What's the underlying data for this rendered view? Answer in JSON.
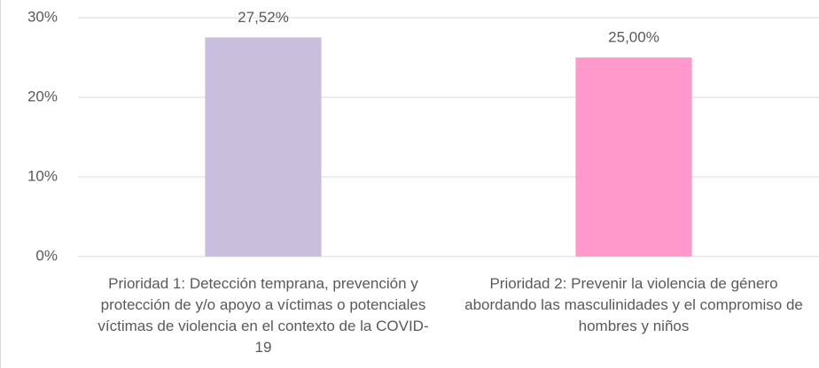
{
  "chart_data": {
    "type": "bar",
    "categories": [
      "Prioridad 1: Detección temprana, prevención y protección de y/o apoyo a víctimas o potenciales víctimas de violencia en el contexto de la COVID-19",
      "Prioridad 2: Prevenir la violencia de género abordando las masculinidades y el compromiso de hombres y niños"
    ],
    "values": [
      27.52,
      25.0
    ],
    "value_labels": [
      "27,52%",
      "25,00%"
    ],
    "colors": [
      "#c9bfdc",
      "#ff99cc"
    ],
    "ylim": [
      0,
      30
    ],
    "yticks": [
      {
        "value": 0,
        "label": "0%"
      },
      {
        "value": 10,
        "label": "10%"
      },
      {
        "value": 20,
        "label": "20%"
      },
      {
        "value": 30,
        "label": "30%"
      }
    ],
    "grid": true
  }
}
